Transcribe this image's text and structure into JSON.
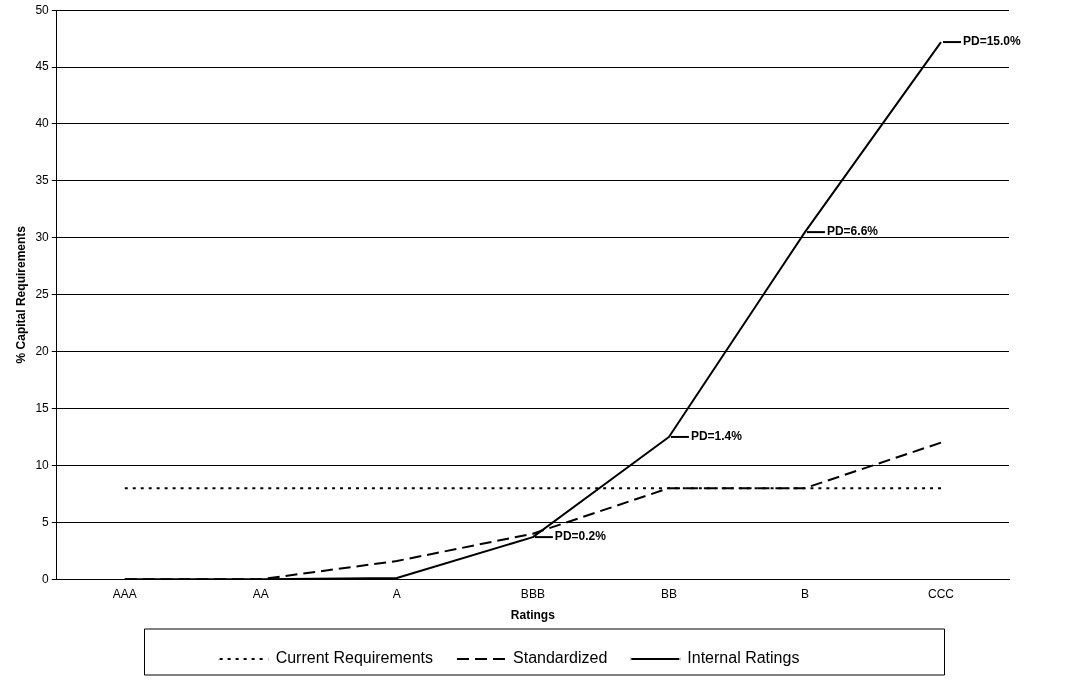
{
  "chart_data": {
    "type": "line",
    "xlabel": "Ratings",
    "ylabel": "% Capital Requirements",
    "categories": [
      "AAA",
      "AA",
      "A",
      "BBB",
      "BB",
      "B",
      "CCC"
    ],
    "series": [
      {
        "name": "Current Requirements",
        "color": "#000000",
        "line_style": "dotted",
        "values": [
          8,
          8,
          8,
          8,
          8,
          8,
          8
        ]
      },
      {
        "name": "Standardized",
        "color": "#000000",
        "line_style": "dashed",
        "values": [
          0,
          0,
          1.6,
          4,
          8,
          8,
          12
        ]
      },
      {
        "name": "Internal Ratings",
        "color": "#000000",
        "line_style": "solid",
        "values": [
          0,
          0,
          0.1,
          3.7,
          12.5,
          30.5,
          47.2
        ]
      }
    ],
    "ylim": [
      0,
      50
    ],
    "yticks": [
      0,
      5,
      10,
      15,
      20,
      25,
      30,
      35,
      40,
      45,
      50
    ],
    "grid": "y",
    "legend": "bottom",
    "marker": "none",
    "annotations": [
      {
        "text": "PD=0.2%",
        "x": "BBB",
        "y": 3.7
      },
      {
        "text": "PD=1.4%",
        "x": "BB",
        "y": 12.5
      },
      {
        "text": "PD=6.6%",
        "x": "B",
        "y": 30.5
      },
      {
        "text": "PD=15.0%",
        "x": "CCC",
        "y": 47.2
      }
    ]
  }
}
